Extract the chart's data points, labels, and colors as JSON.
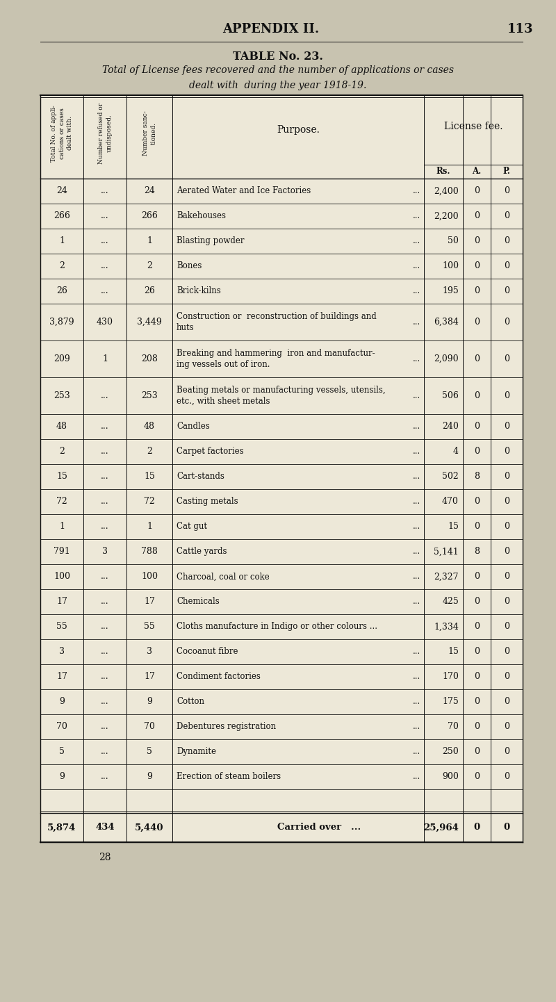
{
  "page_header": "APPENDIX II.",
  "page_number": "113",
  "table_title": "TABLE No. 23.",
  "table_subtitle": "Total of License fees recovered and the number of applications or cases\ndealt with  during the year 1918-19.",
  "rows": [
    {
      "total": "24",
      "refused": "...",
      "sanctioned": "24",
      "purpose": "Aerated Water and Ice Factories",
      "dots": "...",
      "rs": "2,400",
      "a": "0",
      "p": "0"
    },
    {
      "total": "266",
      "refused": "...",
      "sanctioned": "266",
      "purpose": "Bakehouses",
      "dots": "...",
      "rs": "2,200",
      "a": "0",
      "p": "0"
    },
    {
      "total": "1",
      "refused": "...",
      "sanctioned": "1",
      "purpose": "Blasting powder",
      "dots": "...",
      "rs": "50",
      "a": "0",
      "p": "0"
    },
    {
      "total": "2",
      "refused": "...",
      "sanctioned": "2",
      "purpose": "Bones",
      "dots": "...",
      "rs": "100",
      "a": "0",
      "p": "0"
    },
    {
      "total": "26",
      "refused": "...",
      "sanctioned": "26",
      "purpose": "Brick-kilns",
      "dots": "...",
      "rs": "195",
      "a": "0",
      "p": "0"
    },
    {
      "total": "3,879",
      "refused": "430",
      "sanctioned": "3,449",
      "purpose": "Construction or  reconstruction of buildings and\nhuts",
      "dots": "...",
      "rs": "6,384",
      "a": "0",
      "p": "0"
    },
    {
      "total": "209",
      "refused": "1",
      "sanctioned": "208",
      "purpose": "Breaking and hammering  iron and manufactur-\ning vessels out of iron.",
      "dots": "...",
      "rs": "2,090",
      "a": "0",
      "p": "0"
    },
    {
      "total": "253",
      "refused": "...",
      "sanctioned": "253",
      "purpose": "Beating metals or manufacturing vessels, utensils,\netc., with sheet metals",
      "dots": "...",
      "rs": "506",
      "a": "0",
      "p": "0"
    },
    {
      "total": "48",
      "refused": "...",
      "sanctioned": "48",
      "purpose": "Candles",
      "dots": "...",
      "rs": "240",
      "a": "0",
      "p": "0"
    },
    {
      "total": "2",
      "refused": "...",
      "sanctioned": "2",
      "purpose": "Carpet factories",
      "dots": "...",
      "rs": "4",
      "a": "0",
      "p": "0"
    },
    {
      "total": "15",
      "refused": "...",
      "sanctioned": "15",
      "purpose": "Cart-stands",
      "dots": "...",
      "rs": "502",
      "a": "8",
      "p": "0"
    },
    {
      "total": "72",
      "refused": "...",
      "sanctioned": "72",
      "purpose": "Casting metals",
      "dots": "...",
      "rs": "470",
      "a": "0",
      "p": "0"
    },
    {
      "total": "1",
      "refused": "...",
      "sanctioned": "1",
      "purpose": "Cat gut",
      "dots": "...",
      "rs": "15",
      "a": "0",
      "p": "0"
    },
    {
      "total": "791",
      "refused": "3",
      "sanctioned": "788",
      "purpose": "Cattle yards",
      "dots": "...",
      "rs": "5,141",
      "a": "8",
      "p": "0"
    },
    {
      "total": "100",
      "refused": "...",
      "sanctioned": "100",
      "purpose": "Charcoal, coal or coke",
      "dots": "...",
      "rs": "2,327",
      "a": "0",
      "p": "0"
    },
    {
      "total": "17",
      "refused": "...",
      "sanctioned": "17",
      "purpose": "Chemicals",
      "dots": "...",
      "rs": "425",
      "a": "0",
      "p": "0"
    },
    {
      "total": "55",
      "refused": "...",
      "sanctioned": "55",
      "purpose": "Cloths manufacture in Indigo or other colours ...",
      "dots": "",
      "rs": "1,334",
      "a": "0",
      "p": "0"
    },
    {
      "total": "3",
      "refused": "...",
      "sanctioned": "3",
      "purpose": "Cocoanut fibre",
      "dots": "...",
      "rs": "15",
      "a": "0",
      "p": "0"
    },
    {
      "total": "17",
      "refused": "...",
      "sanctioned": "17",
      "purpose": "Condiment factories",
      "dots": "...",
      "rs": "170",
      "a": "0",
      "p": "0"
    },
    {
      "total": "9",
      "refused": "...",
      "sanctioned": "9",
      "purpose": "Cotton",
      "dots": "...",
      "rs": "175",
      "a": "0",
      "p": "0"
    },
    {
      "total": "70",
      "refused": "...",
      "sanctioned": "70",
      "purpose": "Debentures registration",
      "dots": "...",
      "rs": "70",
      "a": "0",
      "p": "0"
    },
    {
      "total": "5",
      "refused": "...",
      "sanctioned": "5",
      "purpose": "Dynamite",
      "dots": "...",
      "rs": "250",
      "a": "0",
      "p": "0"
    },
    {
      "total": "9",
      "refused": "...",
      "sanctioned": "9",
      "purpose": "Erection of steam boilers",
      "dots": "...",
      "rs": "900",
      "a": "0",
      "p": "0"
    }
  ],
  "totals_row": {
    "total": "5,874",
    "refused": "434",
    "sanctioned": "5,440",
    "purpose": "Carried over   ...",
    "rs": "25,964",
    "a": "0",
    "p": "0"
  },
  "footer_note": "28",
  "bg_color": "#c8c3b0",
  "table_bg": "#ede8d8",
  "text_color": "#111111",
  "two_line_rows": [
    5,
    6,
    7
  ]
}
